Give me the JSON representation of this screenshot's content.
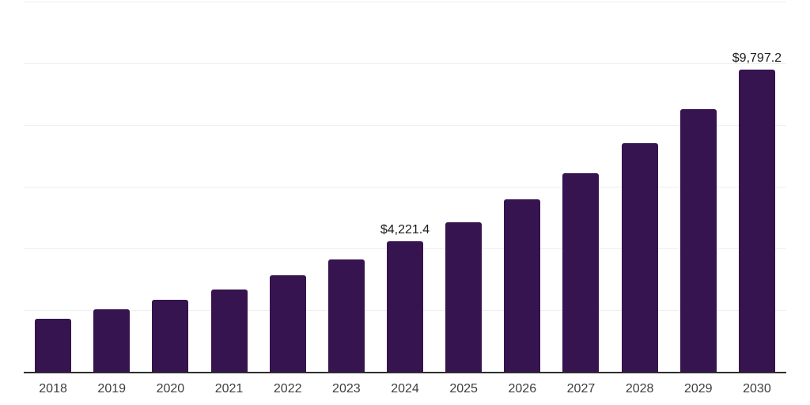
{
  "chart_data": {
    "type": "bar",
    "title": "",
    "categories": [
      "2018",
      "2019",
      "2020",
      "2021",
      "2022",
      "2023",
      "2024",
      "2025",
      "2026",
      "2027",
      "2028",
      "2029",
      "2030"
    ],
    "values": [
      1720,
      2030,
      2340,
      2670,
      3120,
      3630,
      4221.4,
      4857,
      5589,
      6430,
      7399,
      8513,
      9797.2
    ],
    "series_name": "",
    "value_prefix": "$",
    "point_labels": [
      {
        "category": "2024",
        "text": "$4,221.4"
      },
      {
        "category": "2030",
        "text": "$9,797.2"
      }
    ],
    "xlabel": "",
    "ylabel": "",
    "ylim": [
      0,
      12000
    ],
    "gridline_step": 2000,
    "grid": true,
    "legend_position": "none",
    "colors": {
      "bar": "#36144F",
      "axis_line": "#2e2e2e",
      "gridline": "#efefef",
      "tick_label": "#3d3d3d",
      "data_label": "#1c1c1c",
      "background": "#ffffff"
    }
  }
}
